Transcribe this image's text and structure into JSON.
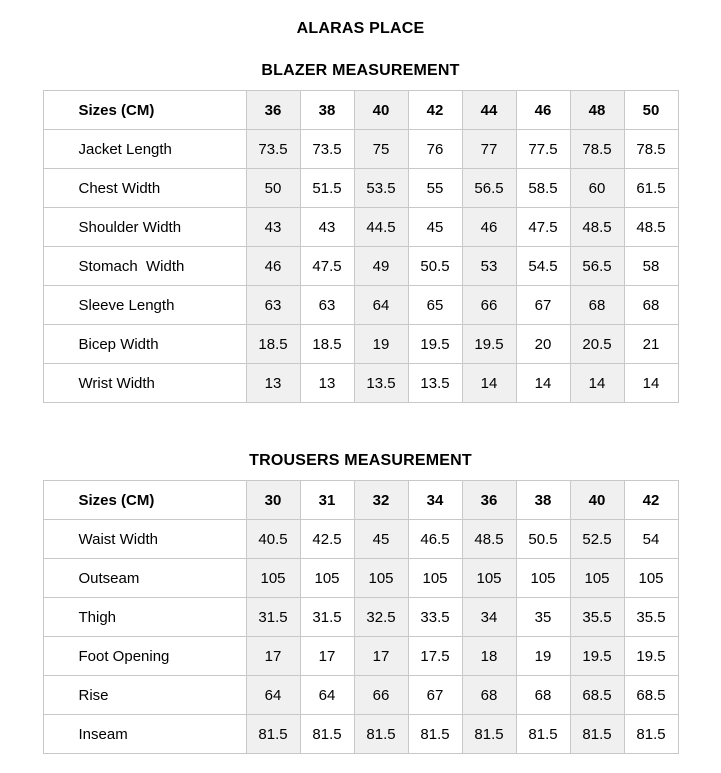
{
  "page": {
    "title": "ALARAS PLACE"
  },
  "colors": {
    "stripe_background": "#f0f0f0",
    "cell_border": "#c8c8c8",
    "text": "#000000"
  },
  "tables": [
    {
      "title": "BLAZER MEASUREMENT",
      "header_label": "Sizes (CM)",
      "sizes": [
        "36",
        "38",
        "40",
        "42",
        "44",
        "46",
        "48",
        "50"
      ],
      "rows": [
        {
          "label": "Jacket Length",
          "values": [
            "73.5",
            "73.5",
            "75",
            "76",
            "77",
            "77.5",
            "78.5",
            "78.5"
          ]
        },
        {
          "label": "Chest Width",
          "values": [
            "50",
            "51.5",
            "53.5",
            "55",
            "56.5",
            "58.5",
            "60",
            "61.5"
          ]
        },
        {
          "label": "Shoulder Width",
          "values": [
            "43",
            "43",
            "44.5",
            "45",
            "46",
            "47.5",
            "48.5",
            "48.5"
          ]
        },
        {
          "label": "Stomach  Width",
          "values": [
            "46",
            "47.5",
            "49",
            "50.5",
            "53",
            "54.5",
            "56.5",
            "58"
          ]
        },
        {
          "label": "Sleeve Length",
          "values": [
            "63",
            "63",
            "64",
            "65",
            "66",
            "67",
            "68",
            "68"
          ]
        },
        {
          "label": "Bicep Width",
          "values": [
            "18.5",
            "18.5",
            "19",
            "19.5",
            "19.5",
            "20",
            "20.5",
            "21"
          ]
        },
        {
          "label": "Wrist Width",
          "values": [
            "13",
            "13",
            "13.5",
            "13.5",
            "14",
            "14",
            "14",
            "14"
          ]
        }
      ]
    },
    {
      "title": "TROUSERS MEASUREMENT",
      "header_label": "Sizes (CM)",
      "sizes": [
        "30",
        "31",
        "32",
        "34",
        "36",
        "38",
        "40",
        "42"
      ],
      "rows": [
        {
          "label": "Waist Width",
          "values": [
            "40.5",
            "42.5",
            "45",
            "46.5",
            "48.5",
            "50.5",
            "52.5",
            "54"
          ]
        },
        {
          "label": "Outseam",
          "values": [
            "105",
            "105",
            "105",
            "105",
            "105",
            "105",
            "105",
            "105"
          ]
        },
        {
          "label": "Thigh",
          "values": [
            "31.5",
            "31.5",
            "32.5",
            "33.5",
            "34",
            "35",
            "35.5",
            "35.5"
          ]
        },
        {
          "label": "Foot Opening",
          "values": [
            "17",
            "17",
            "17",
            "17.5",
            "18",
            "19",
            "19.5",
            "19.5"
          ]
        },
        {
          "label": "Rise",
          "values": [
            "64",
            "64",
            "66",
            "67",
            "68",
            "68",
            "68.5",
            "68.5"
          ]
        },
        {
          "label": "Inseam",
          "values": [
            "81.5",
            "81.5",
            "81.5",
            "81.5",
            "81.5",
            "81.5",
            "81.5",
            "81.5"
          ]
        }
      ]
    }
  ]
}
